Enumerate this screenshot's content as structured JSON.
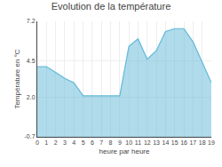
{
  "chart_data": {
    "type": "area",
    "title": "Evolution de la température",
    "xlabel": "heure par heure",
    "ylabel": "Température en °C",
    "x": [
      0,
      1,
      2,
      3,
      4,
      5,
      6,
      7,
      8,
      9,
      10,
      11,
      12,
      13,
      14,
      15,
      16,
      17,
      18,
      19
    ],
    "values": [
      4.1,
      4.1,
      3.7,
      3.3,
      3.0,
      2.1,
      2.1,
      2.1,
      2.1,
      2.1,
      5.5,
      6.0,
      4.6,
      5.2,
      6.5,
      6.7,
      6.7,
      5.8,
      4.4,
      3.0
    ],
    "color": "#60b8d8",
    "xlim": [
      0,
      19
    ],
    "xticks": [
      0,
      1,
      2,
      3,
      4,
      5,
      6,
      7,
      8,
      9,
      10,
      11,
      12,
      13,
      14,
      15,
      16,
      17,
      18,
      19
    ],
    "ylim": [
      -0.7,
      7.2
    ],
    "yticks": [
      -0.7,
      {
        "value": 2.0,
        "label": "2.0"
      },
      4.5,
      7.2
    ],
    "grid": true
  }
}
